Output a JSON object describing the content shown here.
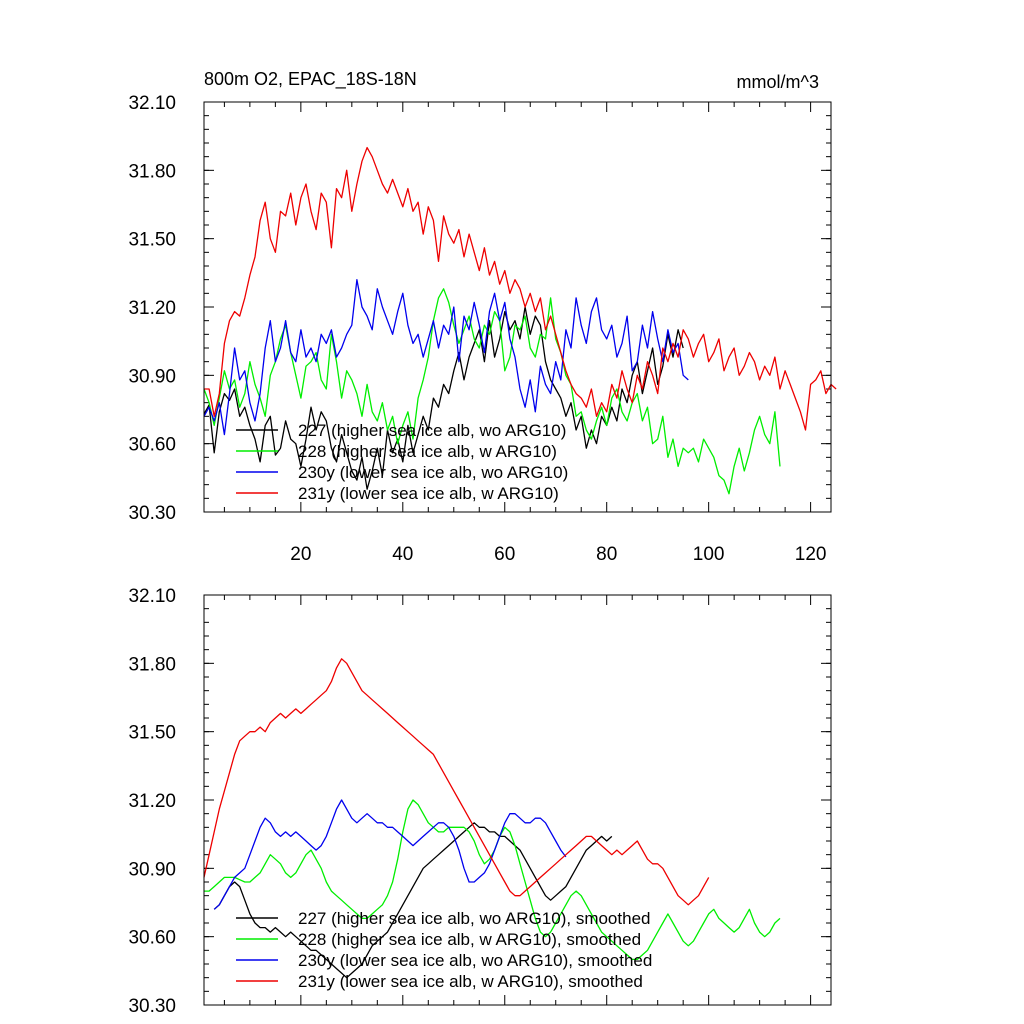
{
  "chart_data": [
    {
      "type": "line",
      "title": "800m O2, EPAC_18S-18N",
      "units": "mmol/m^3",
      "ylim": [
        30.3,
        32.1
      ],
      "xlim": [
        1,
        124
      ],
      "yticks": [
        "30.30",
        "30.60",
        "30.90",
        "31.20",
        "31.50",
        "31.80",
        "32.10"
      ],
      "xticks": [
        "20",
        "40",
        "60",
        "80",
        "100",
        "120"
      ],
      "xtick_values": [
        20,
        40,
        60,
        80,
        100,
        120
      ],
      "series": [
        {
          "name": "227 (higher sea ice alb, wo ARG10)",
          "color": "#000000",
          "x_start": 1,
          "values": [
            30.73,
            30.77,
            30.56,
            30.74,
            30.82,
            30.79,
            30.84,
            30.72,
            30.76,
            30.68,
            30.62,
            30.52,
            30.68,
            30.72,
            30.55,
            30.58,
            30.7,
            30.62,
            30.6,
            30.5,
            30.62,
            30.76,
            30.66,
            30.74,
            30.7,
            30.58,
            30.52,
            30.64,
            30.56,
            30.48,
            30.44,
            30.54,
            30.4,
            30.48,
            30.58,
            30.46,
            30.66,
            30.56,
            30.62,
            30.52,
            30.68,
            30.56,
            30.64,
            30.72,
            30.66,
            30.8,
            30.76,
            30.86,
            30.82,
            30.92,
            31.0,
            30.88,
            30.98,
            31.04,
            31.1,
            30.96,
            31.14,
            30.98,
            31.06,
            31.18,
            31.1,
            31.14,
            31.06,
            31.2,
            31.08,
            31.16,
            31.12,
            30.96,
            30.88,
            30.84,
            30.8,
            30.72,
            30.78,
            30.66,
            30.72,
            30.58,
            30.66,
            30.6,
            30.72,
            30.68,
            30.76,
            30.7,
            30.84,
            30.78,
            30.9,
            30.96,
            30.82,
            30.92,
            31.02,
            30.86,
            30.94,
            31.08,
            30.98,
            31.1,
            31.02
          ]
        },
        {
          "name": "228 (higher sea ice alb, w ARG10)",
          "color": "#00ee00",
          "x_start": 1,
          "values": [
            30.84,
            30.78,
            30.68,
            30.8,
            30.92,
            30.84,
            30.88,
            30.76,
            30.82,
            30.96,
            30.86,
            30.8,
            30.72,
            30.9,
            30.96,
            31.06,
            31.12,
            31.0,
            30.9,
            30.8,
            30.94,
            30.96,
            31.0,
            30.88,
            30.84,
            31.08,
            30.96,
            30.8,
            30.92,
            30.88,
            30.82,
            30.72,
            30.86,
            30.74,
            30.7,
            30.78,
            30.66,
            30.72,
            30.6,
            30.68,
            30.74,
            30.62,
            30.8,
            30.88,
            30.98,
            31.14,
            31.24,
            31.28,
            31.22,
            31.12,
            31.04,
            31.1,
            31.16,
            31.06,
            31.02,
            31.12,
            31.08,
            31.18,
            31.14,
            30.92,
            30.98,
            31.12,
            31.1,
            31.16,
            31.02,
            30.98,
            31.08,
            31.06,
            31.24,
            31.06,
            31.0,
            30.9,
            30.86,
            30.72,
            30.74,
            30.66,
            30.62,
            30.7,
            30.76,
            30.68,
            30.8,
            30.84,
            30.74,
            30.7,
            30.78,
            30.82,
            30.7,
            30.76,
            30.6,
            30.62,
            30.72,
            30.54,
            30.62,
            30.5,
            30.58,
            30.56,
            30.58,
            30.52,
            30.62,
            30.58,
            30.54,
            30.46,
            30.44,
            30.38,
            30.5,
            30.58,
            30.48,
            30.56,
            30.66,
            30.72,
            30.64,
            30.6,
            30.74,
            30.5
          ]
        },
        {
          "name": "230y (lower sea ice alb, wo ARG10)",
          "color": "#0000ee",
          "x_start": 1,
          "values": [
            30.72,
            30.76,
            30.7,
            30.78,
            30.64,
            30.82,
            31.02,
            30.88,
            30.92,
            30.78,
            30.7,
            30.82,
            31.02,
            31.14,
            30.96,
            31.02,
            31.14,
            31.0,
            30.96,
            31.1,
            30.98,
            31.02,
            30.96,
            31.08,
            31.04,
            31.1,
            30.98,
            31.02,
            31.08,
            31.12,
            31.32,
            31.2,
            31.16,
            31.1,
            31.28,
            31.2,
            31.14,
            31.08,
            31.18,
            31.26,
            31.12,
            31.04,
            31.08,
            30.98,
            31.06,
            31.14,
            31.02,
            31.12,
            31.08,
            31.2,
            30.96,
            31.16,
            31.1,
            31.22,
            31.12,
            31.0,
            31.18,
            31.26,
            31.14,
            31.22,
            31.06,
            30.98,
            30.84,
            30.76,
            30.88,
            30.74,
            30.94,
            30.86,
            30.82,
            30.96,
            30.88,
            31.1,
            31.02,
            31.24,
            31.12,
            31.04,
            31.18,
            31.24,
            31.1,
            31.06,
            31.12,
            30.98,
            31.04,
            31.16,
            30.92,
            30.96,
            31.12,
            31.02,
            31.18,
            31.06,
            30.96,
            31.1,
            31.0,
            31.04,
            30.9,
            30.88
          ]
        },
        {
          "name": "231y (lower sea ice alb, w ARG10)",
          "color": "#ee0000",
          "x_start": 1,
          "values": [
            30.84,
            30.84,
            30.72,
            30.82,
            31.04,
            31.14,
            31.18,
            31.16,
            31.24,
            31.34,
            31.42,
            31.58,
            31.66,
            31.5,
            31.44,
            31.62,
            31.6,
            31.7,
            31.56,
            31.68,
            31.74,
            31.62,
            31.54,
            31.7,
            31.66,
            31.46,
            31.72,
            31.68,
            31.8,
            31.62,
            31.74,
            31.84,
            31.9,
            31.86,
            31.8,
            31.74,
            31.7,
            31.76,
            31.7,
            31.64,
            31.72,
            31.62,
            31.66,
            31.52,
            31.64,
            31.58,
            31.4,
            31.6,
            31.52,
            31.48,
            31.54,
            31.42,
            31.52,
            31.44,
            31.36,
            31.46,
            31.34,
            31.4,
            31.3,
            31.36,
            31.26,
            31.32,
            31.28,
            31.2,
            31.26,
            31.18,
            31.24,
            31.1,
            31.16,
            31.08,
            31.0,
            30.92,
            30.86,
            30.82,
            30.8,
            30.76,
            30.84,
            30.72,
            30.78,
            30.74,
            30.86,
            30.8,
            30.92,
            30.84,
            30.78,
            30.9,
            30.84,
            30.96,
            30.9,
            30.82,
            31.02,
            30.96,
            31.04,
            30.98,
            31.1,
            31.06,
            30.98,
            31.04,
            31.08,
            30.96,
            31.0,
            31.06,
            30.92,
            30.98,
            31.02,
            30.9,
            30.94,
            31.0,
            30.96,
            30.88,
            30.94,
            30.9,
            30.98,
            30.84,
            30.92,
            30.86,
            30.8,
            30.74,
            30.66,
            30.86,
            30.88,
            30.92,
            30.82,
            30.86,
            30.84
          ]
        }
      ]
    },
    {
      "type": "line",
      "ylim": [
        30.3,
        32.1
      ],
      "xlim": [
        1,
        124
      ],
      "yticks": [
        "30.30",
        "30.60",
        "30.90",
        "31.20",
        "31.50",
        "31.80",
        "32.10"
      ],
      "xtick_values": [
        20,
        40,
        60,
        80,
        100,
        120
      ],
      "series": [
        {
          "name": "227 (higher sea ice alb, wo ARG10), smoothed",
          "color": "#000000",
          "x_start": 3,
          "values": [
            30.72,
            30.74,
            30.78,
            30.82,
            30.84,
            30.82,
            30.76,
            30.7,
            30.66,
            30.64,
            30.64,
            30.62,
            30.64,
            30.62,
            30.6,
            30.62,
            30.6,
            30.58,
            30.56,
            30.54,
            30.54,
            30.52,
            30.5,
            30.48,
            30.46,
            30.44,
            30.42,
            30.44,
            30.46,
            30.48,
            30.52,
            30.56,
            30.58,
            30.6,
            30.62,
            30.66,
            30.7,
            30.74,
            30.78,
            30.82,
            30.86,
            30.9,
            30.92,
            30.94,
            30.96,
            30.98,
            31.0,
            31.02,
            31.04,
            31.06,
            31.08,
            31.1,
            31.08,
            31.08,
            31.06,
            31.06,
            31.04,
            31.04,
            31.02,
            31.0,
            30.98,
            30.94,
            30.9,
            30.86,
            30.82,
            30.78,
            30.76,
            30.78,
            30.8,
            30.82,
            30.86,
            30.9,
            30.94,
            30.98,
            31.0,
            31.02,
            31.04,
            31.02,
            31.04
          ]
        },
        {
          "name": "228 (higher sea ice alb, w ARG10), smoothed",
          "color": "#00ee00",
          "x_start": 1,
          "values": [
            30.8,
            30.8,
            30.82,
            30.84,
            30.86,
            30.86,
            30.86,
            30.85,
            30.84,
            30.84,
            30.86,
            30.88,
            30.92,
            30.96,
            30.94,
            30.92,
            30.88,
            30.86,
            30.88,
            30.92,
            30.96,
            30.98,
            30.94,
            30.9,
            30.84,
            30.8,
            30.78,
            30.76,
            30.74,
            30.72,
            30.7,
            30.68,
            30.68,
            30.7,
            30.72,
            30.74,
            30.78,
            30.84,
            30.94,
            31.06,
            31.16,
            31.2,
            31.18,
            31.14,
            31.1,
            31.08,
            31.06,
            31.06,
            31.08,
            31.08,
            31.08,
            31.08,
            31.06,
            31.02,
            30.96,
            30.92,
            30.94,
            30.98,
            31.04,
            31.08,
            31.06,
            31.0,
            30.92,
            30.84,
            30.76,
            30.68,
            30.62,
            30.6,
            30.62,
            30.66,
            30.7,
            30.74,
            30.78,
            30.8,
            30.78,
            30.74,
            30.7,
            30.66,
            30.62,
            30.6,
            30.58,
            30.56,
            30.54,
            30.52,
            30.5,
            30.5,
            30.52,
            30.54,
            30.58,
            30.62,
            30.66,
            30.7,
            30.66,
            30.62,
            30.58,
            30.56,
            30.58,
            30.62,
            30.66,
            30.7,
            30.72,
            30.68,
            30.66,
            30.64,
            30.62,
            30.64,
            30.68,
            30.72,
            30.66,
            30.62,
            30.6,
            30.62,
            30.66,
            30.68
          ]
        },
        {
          "name": "230y (lower sea ice alb, wo ARG10), smoothed",
          "color": "#0000ee",
          "x_start": 3,
          "values": [
            30.72,
            30.74,
            30.78,
            30.82,
            30.86,
            30.88,
            30.9,
            30.96,
            31.02,
            31.08,
            31.12,
            31.1,
            31.06,
            31.04,
            31.06,
            31.04,
            31.06,
            31.04,
            31.02,
            31.0,
            30.98,
            31.0,
            31.04,
            31.1,
            31.16,
            31.2,
            31.16,
            31.12,
            31.1,
            31.12,
            31.14,
            31.12,
            31.1,
            31.1,
            31.08,
            31.08,
            31.06,
            31.04,
            31.02,
            31.0,
            31.02,
            31.04,
            31.06,
            31.08,
            31.1,
            31.1,
            31.08,
            31.04,
            30.98,
            30.9,
            30.84,
            30.84,
            30.86,
            30.88,
            30.92,
            30.98,
            31.04,
            31.1,
            31.14,
            31.14,
            31.12,
            31.1,
            31.1,
            31.12,
            31.12,
            31.1,
            31.06,
            31.02,
            30.98,
            30.95
          ]
        },
        {
          "name": "231y (lower sea ice alb, w ARG10), smoothed",
          "color": "#ee0000",
          "x_start": 1,
          "values": [
            30.86,
            30.96,
            31.06,
            31.16,
            31.24,
            31.32,
            31.4,
            31.46,
            31.48,
            31.5,
            31.5,
            31.52,
            31.5,
            31.54,
            31.56,
            31.58,
            31.56,
            31.58,
            31.6,
            31.58,
            31.6,
            31.62,
            31.64,
            31.66,
            31.68,
            31.72,
            31.78,
            31.82,
            31.8,
            31.76,
            31.72,
            31.68,
            31.66,
            31.64,
            31.62,
            31.6,
            31.58,
            31.56,
            31.54,
            31.52,
            31.5,
            31.48,
            31.46,
            31.44,
            31.42,
            31.4,
            31.36,
            31.32,
            31.28,
            31.24,
            31.2,
            31.16,
            31.12,
            31.08,
            31.04,
            31.0,
            30.96,
            30.92,
            30.88,
            30.84,
            30.8,
            30.78,
            30.78,
            30.8,
            30.82,
            30.84,
            30.86,
            30.88,
            30.9,
            30.92,
            30.94,
            30.96,
            30.98,
            31.0,
            31.02,
            31.04,
            31.04,
            31.02,
            31.0,
            30.98,
            30.96,
            30.98,
            30.96,
            30.98,
            31.0,
            31.02,
            30.98,
            30.94,
            30.92,
            30.92,
            30.9,
            30.86,
            30.82,
            30.78,
            30.76,
            30.74,
            30.76,
            30.78,
            30.82,
            30.86
          ]
        }
      ]
    }
  ]
}
